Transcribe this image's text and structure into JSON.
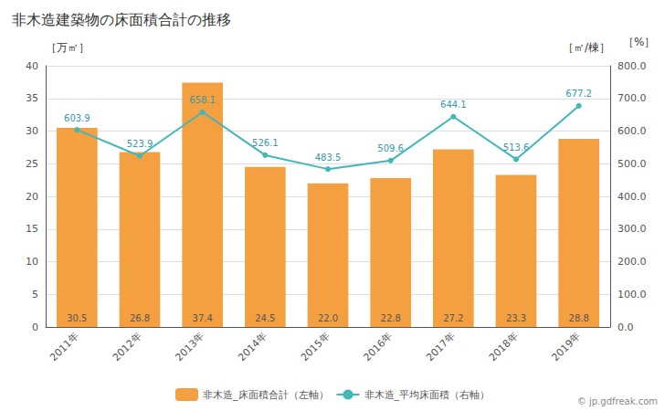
{
  "chart_data": {
    "type": "bar",
    "title": "非木造建築物の床面積合計の推移",
    "categories": [
      "2011年",
      "2012年",
      "2013年",
      "2014年",
      "2015年",
      "2016年",
      "2017年",
      "2018年",
      "2019年"
    ],
    "series": [
      {
        "name": "非木造_床面積合計（左軸）",
        "type": "bar",
        "color": "#F5A040",
        "values": [
          30.5,
          26.8,
          37.4,
          24.5,
          22.0,
          22.8,
          27.2,
          23.3,
          28.8
        ],
        "value_labels": [
          "30.5",
          "26.8",
          "37.4",
          "24.5",
          "22.0",
          "22.8",
          "27.2",
          "23.3",
          "28.8"
        ]
      },
      {
        "name": "非木造_平均床面積（右軸）",
        "type": "line",
        "axis": "y2",
        "color": "#40B8B8",
        "marker": "circle",
        "values": [
          603.9,
          523.9,
          658.1,
          526.1,
          483.5,
          509.6,
          644.1,
          513.6,
          677.2
        ]
      }
    ],
    "ylabel": "［万㎡］",
    "y2label": "［㎡/棟］",
    "annotations": [
      "［%］",
      "© jp.gdfreak.com"
    ],
    "ylim": [
      0,
      40
    ],
    "yticks": [
      0,
      5,
      10,
      15,
      20,
      25,
      30,
      35,
      40
    ],
    "y2lim": [
      0,
      800
    ],
    "y2ticks": [
      {
        "value": 0,
        "label": "0.0"
      },
      {
        "value": 100,
        "label": "100.0"
      },
      {
        "value": 200,
        "label": "200.0"
      },
      {
        "value": 300,
        "label": "300.0"
      },
      {
        "value": 400,
        "label": "400.0"
      },
      {
        "value": 500,
        "label": "500.0"
      },
      {
        "value": 600,
        "label": "600.0"
      },
      {
        "value": 700,
        "label": "700.0"
      },
      {
        "value": 800,
        "label": "800.0"
      }
    ],
    "grid": true,
    "legend": "bottom",
    "data_labels": true
  }
}
